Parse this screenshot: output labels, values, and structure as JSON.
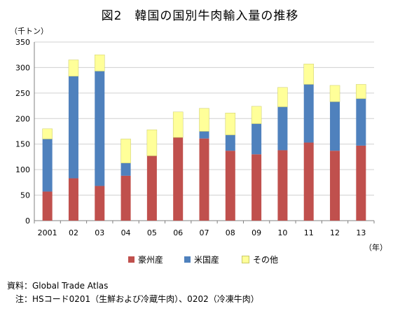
{
  "chart_data": {
    "type": "bar",
    "stacked": true,
    "title": "図2　韓国の国別牛肉輸入量の推移",
    "ylabel": "（千トン）",
    "xlabel": "（年）",
    "ylim": [
      0,
      350
    ],
    "yticks": [
      0,
      50,
      100,
      150,
      200,
      250,
      300,
      350
    ],
    "grid": true,
    "legend_position": "bottom",
    "categories": [
      "2001",
      "02",
      "03",
      "04",
      "05",
      "06",
      "07",
      "08",
      "09",
      "10",
      "11",
      "12",
      "13"
    ],
    "series": [
      {
        "name": "豪州産",
        "color": "#c0504d",
        "values": [
          57,
          83,
          68,
          88,
          127,
          163,
          161,
          137,
          130,
          138,
          153,
          137,
          147
        ]
      },
      {
        "name": "米国産",
        "color": "#4f81bd",
        "values": [
          103,
          200,
          225,
          25,
          0,
          0,
          14,
          31,
          60,
          85,
          114,
          96,
          92
        ]
      },
      {
        "name": "その他",
        "color": "#ffff99",
        "values": [
          20,
          32,
          32,
          47,
          51,
          50,
          45,
          43,
          34,
          38,
          40,
          32,
          28
        ]
      }
    ]
  },
  "notes": {
    "source": "資料：Global Trade Atlas",
    "note": "　注：HSコード0201（生鮮および冷蔵牛肉）、0202（冷凍牛肉）"
  }
}
